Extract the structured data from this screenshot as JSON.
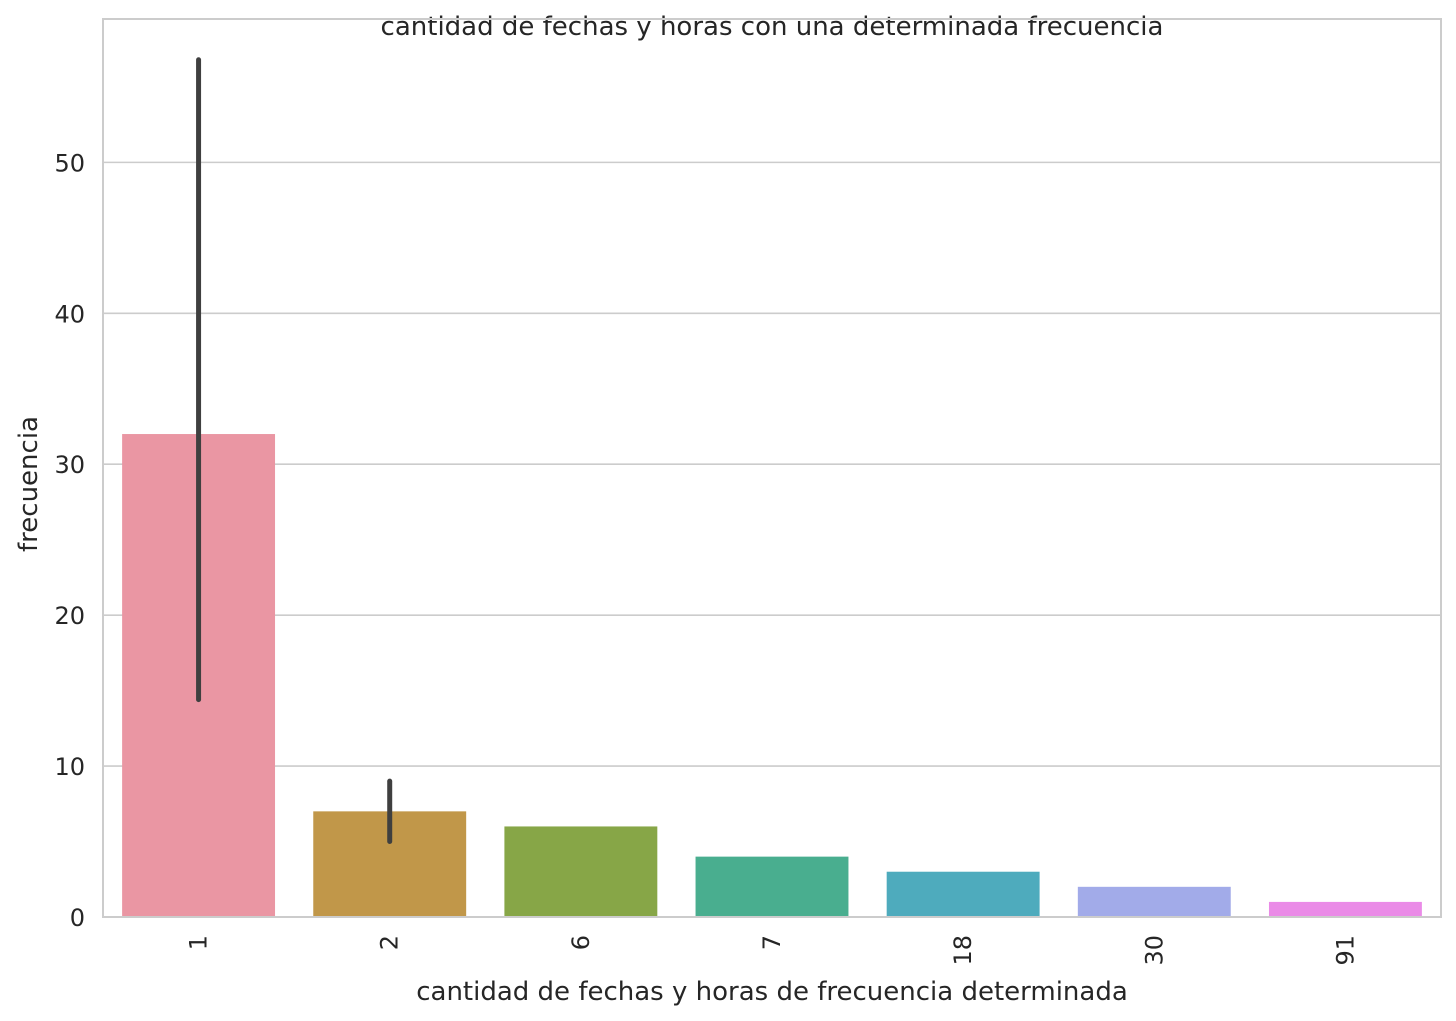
{
  "chart_data": {
    "type": "bar",
    "title": "cantidad de fechas y horas con una determinada frecuencia",
    "xlabel": "cantidad de fechas y horas de frecuencia determinada",
    "ylabel": "frecuencia",
    "categories": [
      "1",
      "2",
      "6",
      "7",
      "18",
      "30",
      "91"
    ],
    "values": [
      32,
      7,
      6,
      4,
      3,
      2,
      1
    ],
    "error_bars": [
      {
        "category": "1",
        "low": 14.4,
        "high": 56.8
      },
      {
        "category": "2",
        "low": 5,
        "high": 9
      }
    ],
    "colors": [
      "#ea96a3",
      "#c19749",
      "#87a647",
      "#49ae8f",
      "#4eabbd",
      "#a2abe9",
      "#ea8be7"
    ],
    "ylim": [
      0,
      59.5
    ],
    "yticks": [
      0,
      10,
      20,
      30,
      40,
      50
    ],
    "grid": true,
    "xtick_rotation": -90
  }
}
